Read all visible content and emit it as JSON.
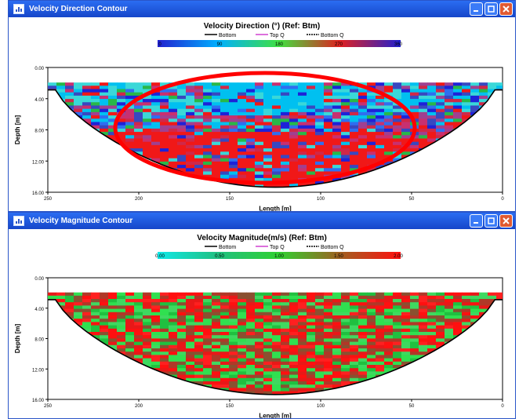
{
  "windows": [
    {
      "title": "Velocity Direction Contour",
      "minimize_icon": "minimize-icon",
      "maximize_icon": "maximize-icon",
      "close_icon": "close-icon",
      "plot": {
        "title": "Velocity Direction (°) (Ref: Btm)",
        "legend": [
          "Bottom",
          "Top Q",
          "Bottom Q"
        ],
        "colorbar_ticks": [
          "0",
          "90",
          "180",
          "270",
          "360"
        ],
        "colorbar_colors": [
          "#2020d0",
          "#00b0ff",
          "#40e040",
          "#e02020",
          "#2020d0"
        ],
        "ylabel": "Depth [m]",
        "xlabel": "Length [m]",
        "y_ticks": [
          "0.00",
          "4.00",
          "8.00",
          "12.00",
          "16.00"
        ],
        "x_ticks": [
          "250",
          "200",
          "150",
          "100",
          "50",
          "0"
        ],
        "palette": [
          "#1e22d8",
          "#2f6ef0",
          "#00c0f0",
          "#3ad8d8",
          "#28b848",
          "#a04090",
          "#d02848",
          "#f01818",
          "#c83070",
          "#3848c0"
        ],
        "annotation": "red-ellipse"
      }
    },
    {
      "title": "Velocity Magnitude Contour",
      "minimize_icon": "minimize-icon",
      "maximize_icon": "maximize-icon",
      "close_icon": "close-icon",
      "plot": {
        "title": "Velocity Magnitude(m/s) (Ref: Btm)",
        "legend": [
          "Bottom",
          "Top Q",
          "Bottom Q"
        ],
        "colorbar_ticks": [
          "0.00",
          "0.50",
          "1.00",
          "1.50",
          "2.00"
        ],
        "colorbar_colors": [
          "#10e8e8",
          "#20c080",
          "#30d030",
          "#a06020",
          "#ff1010"
        ],
        "ylabel": "Depth [m]",
        "xlabel": "Length [m]",
        "y_ticks": [
          "0.00",
          "4.00",
          "8.00",
          "12.00",
          "16.00"
        ],
        "x_ticks": [
          "250",
          "200",
          "150",
          "100",
          "50",
          "0"
        ],
        "palette": [
          "#ff1010",
          "#e81818",
          "#30e050",
          "#20c040",
          "#b03828",
          "#3fd860",
          "#ff2020",
          "#8a5030"
        ]
      }
    }
  ]
}
